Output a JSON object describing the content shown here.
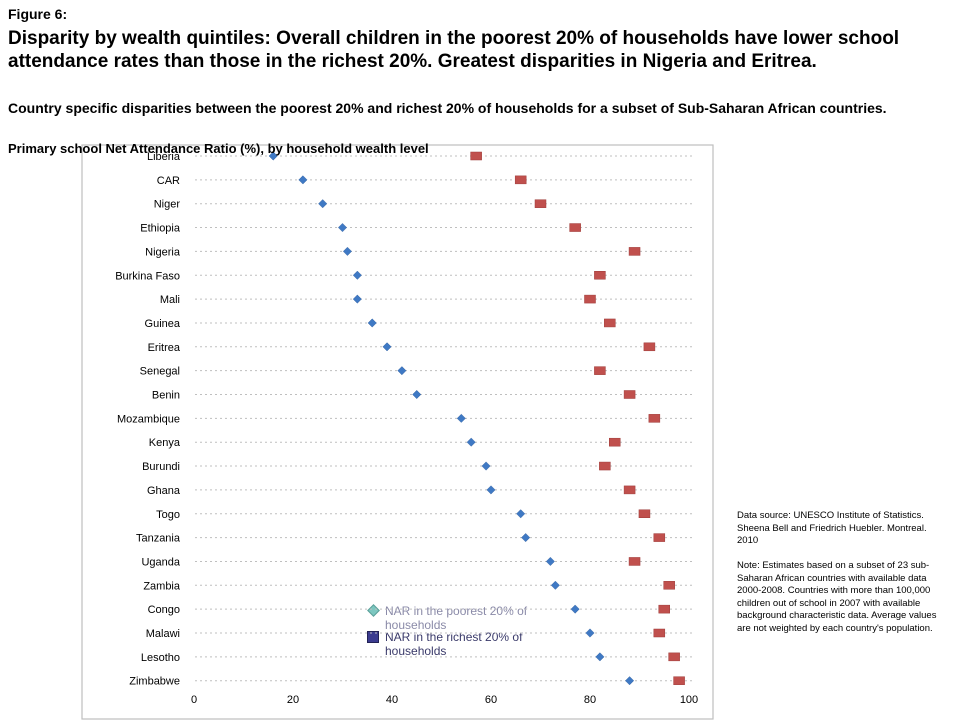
{
  "header": {
    "figure_label": "Figure 6:",
    "headline": "Disparity by wealth quintiles: Overall children in the poorest 20% of households have lower school attendance rates than those in the richest 20%.  Greatest disparities in Nigeria and Eritrea.",
    "subhead": "Country specific disparities between the poorest 20% and richest 20% of households for a subset of Sub-Saharan African countries."
  },
  "notes": {
    "source": "Data source: UNESCO Institute of Statistics. Sheena Bell and Friedrich Huebler. Montreal. 2010",
    "note": "Note: Estimates based on a subset of 23 sub-Saharan African countries with available data 2000-2008. Countries with more than 100,000 children out of school in 2007 with available background characteristic data. Average values are not weighted by each country's population."
  },
  "legend": {
    "poorest": "NAR in the poorest 20% of households",
    "richest": "NAR in the richest 20% of households"
  },
  "colors": {
    "poorest": "#3f79c4",
    "richest": "#c0504d",
    "gridline": "#bfbfbf",
    "frame": "#bfbfbf"
  },
  "chart_data": {
    "type": "scatter",
    "title": "Primary school Net Attendance Ratio (%), by household wealth level",
    "categories": [
      "Liberia",
      "CAR",
      "Niger",
      "Ethiopia",
      "Nigeria",
      "Burkina Faso",
      "Mali",
      "Guinea",
      "Eritrea",
      "Senegal",
      "Benin",
      "Mozambique",
      "Kenya",
      "Burundi",
      "Ghana",
      "Togo",
      "Tanzania",
      "Uganda",
      "Zambia",
      "Congo",
      "Malawi",
      "Lesotho",
      "Zimbabwe"
    ],
    "series": [
      {
        "name": "NAR in the poorest 20% of households",
        "marker": "diamond",
        "values": [
          16,
          22,
          26,
          30,
          31,
          33,
          33,
          36,
          39,
          42,
          45,
          54,
          56,
          59,
          60,
          66,
          67,
          72,
          73,
          77,
          80,
          82,
          88
        ]
      },
      {
        "name": "NAR in the richest 20% of households",
        "marker": "square",
        "values": [
          57,
          66,
          70,
          77,
          89,
          82,
          80,
          84,
          92,
          82,
          88,
          93,
          85,
          83,
          88,
          91,
          94,
          89,
          96,
          95,
          94,
          97,
          98
        ]
      }
    ],
    "xlim": [
      0,
      100
    ],
    "xticks": [
      "0",
      "20",
      "40",
      "60",
      "80",
      "100"
    ],
    "xlabel": "",
    "ylabel": "",
    "grid": "horizontal dotted"
  }
}
